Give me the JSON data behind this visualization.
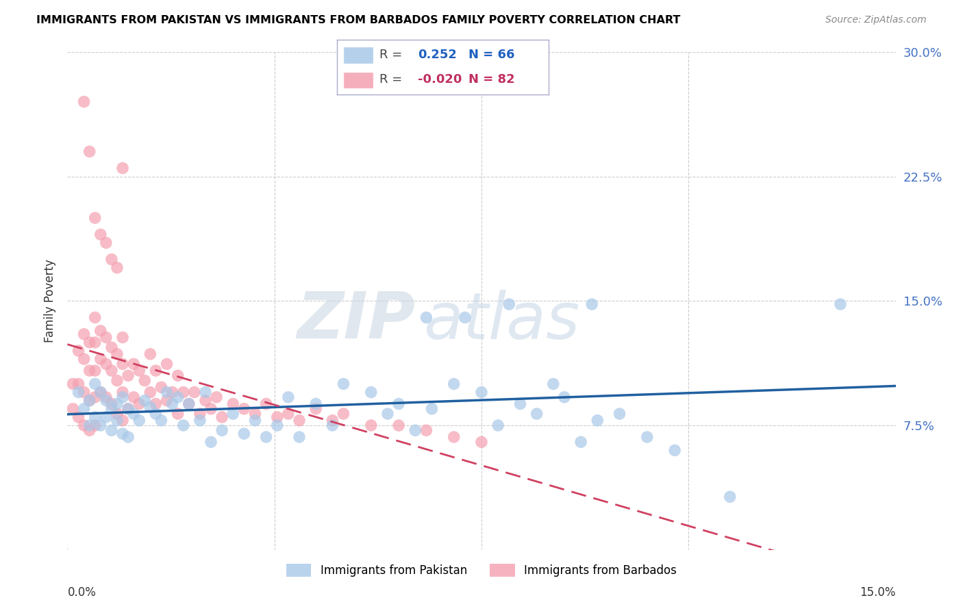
{
  "title": "IMMIGRANTS FROM PAKISTAN VS IMMIGRANTS FROM BARBADOS FAMILY POVERTY CORRELATION CHART",
  "source": "Source: ZipAtlas.com",
  "ylabel": "Family Poverty",
  "x_min": 0.0,
  "x_max": 0.15,
  "y_min": 0.0,
  "y_max": 0.3,
  "yticks": [
    0.0,
    0.075,
    0.15,
    0.225,
    0.3
  ],
  "ytick_labels": [
    "",
    "7.5%",
    "15.0%",
    "22.5%",
    "30.0%"
  ],
  "pakistan_color": "#a8c8e8",
  "barbados_color": "#f4a0b0",
  "pakistan_line_color": "#2060a0",
  "barbados_line_color": "#d04060",
  "pakistan_R": 0.252,
  "pakistan_N": 66,
  "barbados_R": -0.02,
  "barbados_N": 82,
  "pakistan_scatter_x": [
    0.002,
    0.003,
    0.004,
    0.004,
    0.005,
    0.005,
    0.006,
    0.006,
    0.007,
    0.007,
    0.008,
    0.008,
    0.009,
    0.009,
    0.01,
    0.01,
    0.011,
    0.011,
    0.012,
    0.013,
    0.014,
    0.015,
    0.016,
    0.017,
    0.018,
    0.019,
    0.02,
    0.021,
    0.022,
    0.024,
    0.025,
    0.026,
    0.028,
    0.03,
    0.032,
    0.034,
    0.036,
    0.038,
    0.04,
    0.042,
    0.045,
    0.048,
    0.05,
    0.055,
    0.058,
    0.06,
    0.063,
    0.066,
    0.07,
    0.075,
    0.078,
    0.082,
    0.085,
    0.09,
    0.093,
    0.096,
    0.1,
    0.105,
    0.11,
    0.12,
    0.065,
    0.072,
    0.08,
    0.088,
    0.095,
    0.14
  ],
  "pakistan_scatter_y": [
    0.095,
    0.085,
    0.09,
    0.075,
    0.1,
    0.08,
    0.095,
    0.075,
    0.09,
    0.08,
    0.085,
    0.072,
    0.088,
    0.078,
    0.092,
    0.07,
    0.085,
    0.068,
    0.082,
    0.078,
    0.09,
    0.086,
    0.082,
    0.078,
    0.095,
    0.088,
    0.092,
    0.075,
    0.088,
    0.078,
    0.095,
    0.065,
    0.072,
    0.082,
    0.07,
    0.078,
    0.068,
    0.075,
    0.092,
    0.068,
    0.088,
    0.075,
    0.1,
    0.095,
    0.082,
    0.088,
    0.072,
    0.085,
    0.1,
    0.095,
    0.075,
    0.088,
    0.082,
    0.092,
    0.065,
    0.078,
    0.082,
    0.068,
    0.06,
    0.032,
    0.14,
    0.14,
    0.148,
    0.1,
    0.148,
    0.148
  ],
  "barbados_scatter_x": [
    0.001,
    0.001,
    0.002,
    0.002,
    0.002,
    0.003,
    0.003,
    0.003,
    0.003,
    0.004,
    0.004,
    0.004,
    0.004,
    0.005,
    0.005,
    0.005,
    0.005,
    0.005,
    0.006,
    0.006,
    0.006,
    0.007,
    0.007,
    0.007,
    0.008,
    0.008,
    0.008,
    0.009,
    0.009,
    0.009,
    0.01,
    0.01,
    0.01,
    0.01,
    0.011,
    0.011,
    0.012,
    0.012,
    0.013,
    0.013,
    0.014,
    0.015,
    0.015,
    0.016,
    0.016,
    0.017,
    0.018,
    0.018,
    0.019,
    0.02,
    0.02,
    0.021,
    0.022,
    0.023,
    0.024,
    0.025,
    0.026,
    0.027,
    0.028,
    0.03,
    0.032,
    0.034,
    0.036,
    0.038,
    0.04,
    0.042,
    0.045,
    0.048,
    0.05,
    0.055,
    0.06,
    0.065,
    0.07,
    0.075,
    0.003,
    0.004,
    0.005,
    0.006,
    0.007,
    0.008,
    0.009,
    0.01
  ],
  "barbados_scatter_y": [
    0.1,
    0.085,
    0.12,
    0.1,
    0.08,
    0.13,
    0.115,
    0.095,
    0.075,
    0.125,
    0.108,
    0.09,
    0.072,
    0.14,
    0.125,
    0.108,
    0.092,
    0.075,
    0.132,
    0.115,
    0.095,
    0.128,
    0.112,
    0.092,
    0.122,
    0.108,
    0.088,
    0.118,
    0.102,
    0.082,
    0.128,
    0.112,
    0.095,
    0.078,
    0.105,
    0.085,
    0.112,
    0.092,
    0.108,
    0.088,
    0.102,
    0.118,
    0.095,
    0.108,
    0.088,
    0.098,
    0.112,
    0.09,
    0.095,
    0.105,
    0.082,
    0.095,
    0.088,
    0.095,
    0.082,
    0.09,
    0.085,
    0.092,
    0.08,
    0.088,
    0.085,
    0.082,
    0.088,
    0.08,
    0.082,
    0.078,
    0.085,
    0.078,
    0.082,
    0.075,
    0.075,
    0.072,
    0.068,
    0.065,
    0.27,
    0.24,
    0.2,
    0.19,
    0.185,
    0.175,
    0.17,
    0.23
  ],
  "watermark_zip": "ZIP",
  "watermark_atlas": "atlas",
  "grid_color": "#cccccc",
  "xtick_positions": [
    0.0,
    0.0375,
    0.075,
    0.1125,
    0.15
  ],
  "legend_box_color": "#e8e8f0"
}
